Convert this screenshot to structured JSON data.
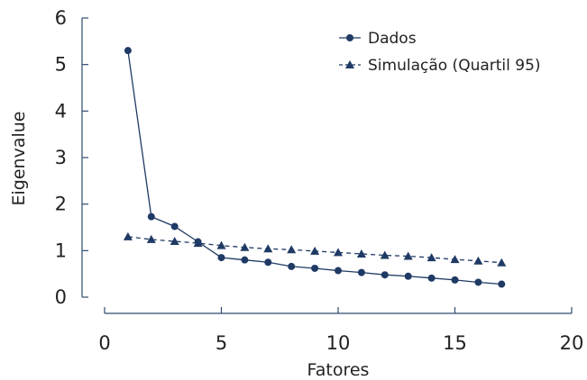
{
  "chart_data": {
    "type": "line",
    "xlabel": "Fatores",
    "ylabel": "Eigenvalue",
    "xlim": [
      0,
      20
    ],
    "ylim": [
      0,
      6
    ],
    "xticks": [
      0,
      5,
      10,
      15,
      20
    ],
    "yticks": [
      0,
      1,
      2,
      3,
      4,
      5,
      6
    ],
    "grid": false,
    "legend_position": "top-right",
    "series": [
      {
        "name": "Dados",
        "marker": "circle",
        "line_style": "solid",
        "color": "#1f3a64",
        "x": [
          1,
          2,
          3,
          4,
          5,
          6,
          7,
          8,
          9,
          10,
          11,
          12,
          13,
          14,
          15,
          16,
          17
        ],
        "y": [
          5.3,
          1.73,
          1.52,
          1.19,
          0.85,
          0.8,
          0.75,
          0.66,
          0.62,
          0.57,
          0.53,
          0.48,
          0.45,
          0.41,
          0.37,
          0.32,
          0.28
        ]
      },
      {
        "name": "Simulação (Quartil 95)",
        "marker": "triangle",
        "line_style": "dashed",
        "color": "#1f3a64",
        "x": [
          1,
          2,
          3,
          4,
          5,
          6,
          7,
          8,
          9,
          10,
          11,
          12,
          13,
          14,
          15,
          16,
          17
        ],
        "y": [
          1.3,
          1.24,
          1.2,
          1.16,
          1.11,
          1.07,
          1.04,
          1.02,
          0.99,
          0.96,
          0.93,
          0.9,
          0.88,
          0.85,
          0.81,
          0.78,
          0.74
        ]
      }
    ]
  }
}
